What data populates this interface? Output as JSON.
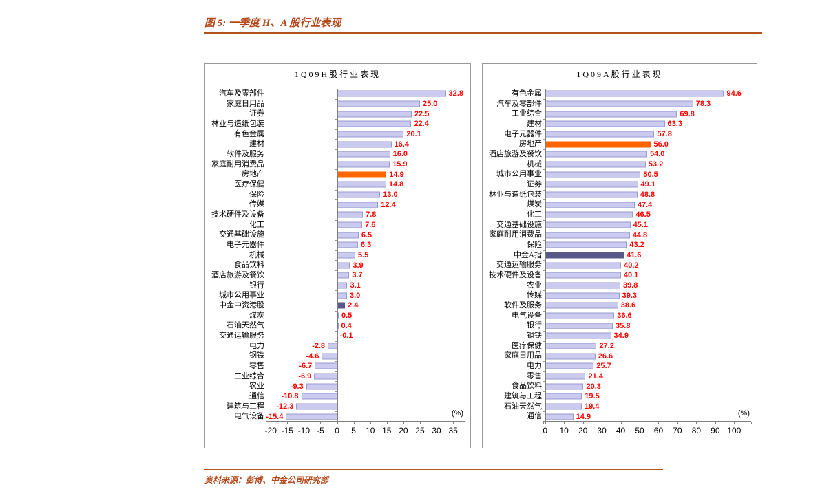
{
  "figure": {
    "title": "图 5:  一季度 H、A 股行业表现",
    "source": "资料来源：彭博、中金公司研究部",
    "title_color": "#B5481B",
    "rule_color": "#B4531B"
  },
  "chart_data": [
    {
      "type": "bar",
      "orientation": "horizontal",
      "title": "1Q09H股行业表现",
      "unit_label": "(%)",
      "xlim": [
        -21.5,
        38.5
      ],
      "xticks": [
        -20,
        -15,
        -10,
        -5,
        0,
        5,
        10,
        15,
        20,
        25,
        30,
        35
      ],
      "grid": false,
      "bar_color": "#CBCBF0",
      "bar_border": "#9A9AD0",
      "value_color": "#FF0000",
      "highlights": {
        "8": "#FF6600",
        "21": "#585889"
      },
      "categories": [
        "汽车及零部件",
        "家庭日用品",
        "证券",
        "林业与造纸包装",
        "有色金属",
        "建材",
        "软件及服务",
        "家庭耐用消费品",
        "房地产",
        "医疗保健",
        "保险",
        "传媒",
        "技术硬件及设备",
        "化工",
        "交通基础设施",
        "电子元器件",
        "机械",
        "食品饮料",
        "酒店旅游及餐饮",
        "银行",
        "城市公用事业",
        "中金中资港股",
        "煤炭",
        "石油天然气",
        "交通运输服务",
        "电力",
        "钢铁",
        "零售",
        "工业综合",
        "农业",
        "通信",
        "建筑与工程",
        "电气设备"
      ],
      "values": [
        32.8,
        25.0,
        22.5,
        22.4,
        20.1,
        16.4,
        16.0,
        15.9,
        14.9,
        14.8,
        13.0,
        12.4,
        7.8,
        7.6,
        6.5,
        6.3,
        5.5,
        3.9,
        3.7,
        3.1,
        3.0,
        2.4,
        0.5,
        0.4,
        -0.1,
        -2.8,
        -4.6,
        -6.7,
        -6.9,
        -9.3,
        -10.8,
        -12.3,
        -15.4
      ]
    },
    {
      "type": "bar",
      "orientation": "horizontal",
      "title": "1Q09A股行业表现",
      "unit_label": "(%)",
      "xlim": [
        -1,
        109
      ],
      "xticks": [
        0,
        10,
        20,
        30,
        40,
        50,
        60,
        70,
        80,
        90,
        100
      ],
      "grid": false,
      "bar_color": "#CBCBF0",
      "bar_border": "#9A9AD0",
      "value_color": "#FF0000",
      "highlights": {
        "5": "#FF6600",
        "16": "#585889"
      },
      "categories": [
        "有色金属",
        "汽车及零部件",
        "工业综合",
        "建材",
        "电子元器件",
        "房地产",
        "酒店旅游及餐饮",
        "机械",
        "城市公用事业",
        "证券",
        "林业与造纸包装",
        "煤炭",
        "化工",
        "交通基础设施",
        "家庭耐用消费品",
        "保险",
        "中金A指",
        "交通运输服务",
        "技术硬件及设备",
        "农业",
        "传媒",
        "软件及服务",
        "电气设备",
        "银行",
        "钢铁",
        "医疗保健",
        "家庭日用品",
        "电力",
        "零售",
        "食品饮料",
        "建筑与工程",
        "石油天然气",
        "通信"
      ],
      "values": [
        94.6,
        78.3,
        69.8,
        63.3,
        57.8,
        56.0,
        54.0,
        53.2,
        50.5,
        49.1,
        48.8,
        47.4,
        46.5,
        45.1,
        44.8,
        43.2,
        41.6,
        40.2,
        40.1,
        39.8,
        39.3,
        38.6,
        36.6,
        35.8,
        34.9,
        27.2,
        26.6,
        25.7,
        21.4,
        20.3,
        19.5,
        19.4,
        14.9
      ]
    }
  ]
}
